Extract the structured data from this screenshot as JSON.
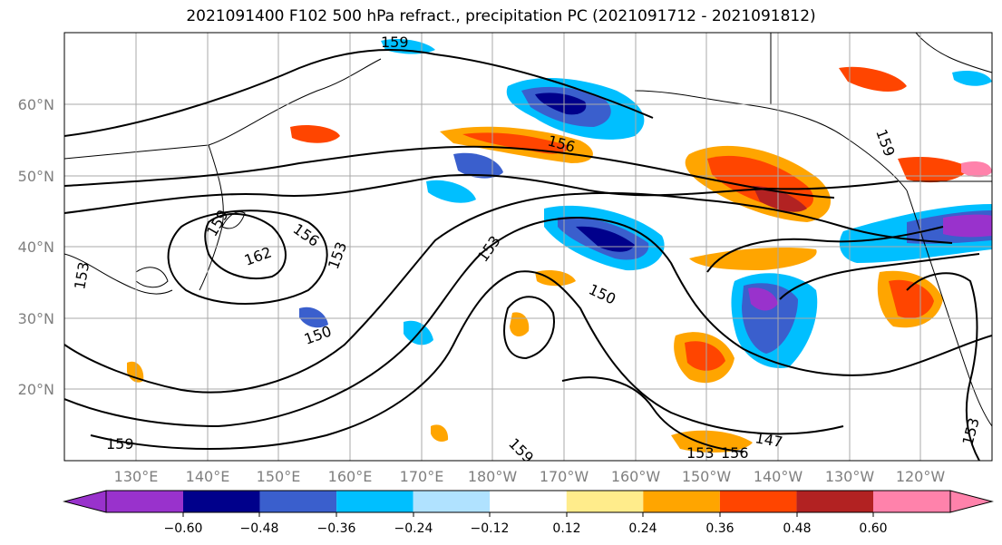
{
  "title": "2021091400 F102 500 hPa refract., precipitation PC (2021091712 - 2021091812)",
  "lat_ticks": [
    "60°N",
    "50°N",
    "40°N",
    "30°N",
    "20°N"
  ],
  "lon_ticks": [
    "130°E",
    "140°E",
    "150°E",
    "160°E",
    "170°E",
    "180°W",
    "170°W",
    "160°W",
    "150°W",
    "140°W",
    "130°W",
    "120°W"
  ],
  "colorbar": {
    "tick_labels": [
      "−0.60",
      "−0.48",
      "−0.36",
      "−0.24",
      "−0.12",
      "0.12",
      "0.24",
      "0.36",
      "0.48",
      "0.60"
    ],
    "colors": [
      "#9932cc",
      "#00008b",
      "#3a5fcd",
      "#00bfff",
      "#b0e2ff",
      "#ffffff",
      "#ffec8b",
      "#ffa500",
      "#ff4500",
      "#b22222",
      "#ff82ab"
    ]
  },
  "contour_labels": [
    "159",
    "156",
    "162",
    "153",
    "150",
    "153",
    "156",
    "159",
    "150",
    "147",
    "153",
    "156",
    "159",
    "153",
    "159",
    "153",
    "159"
  ]
}
